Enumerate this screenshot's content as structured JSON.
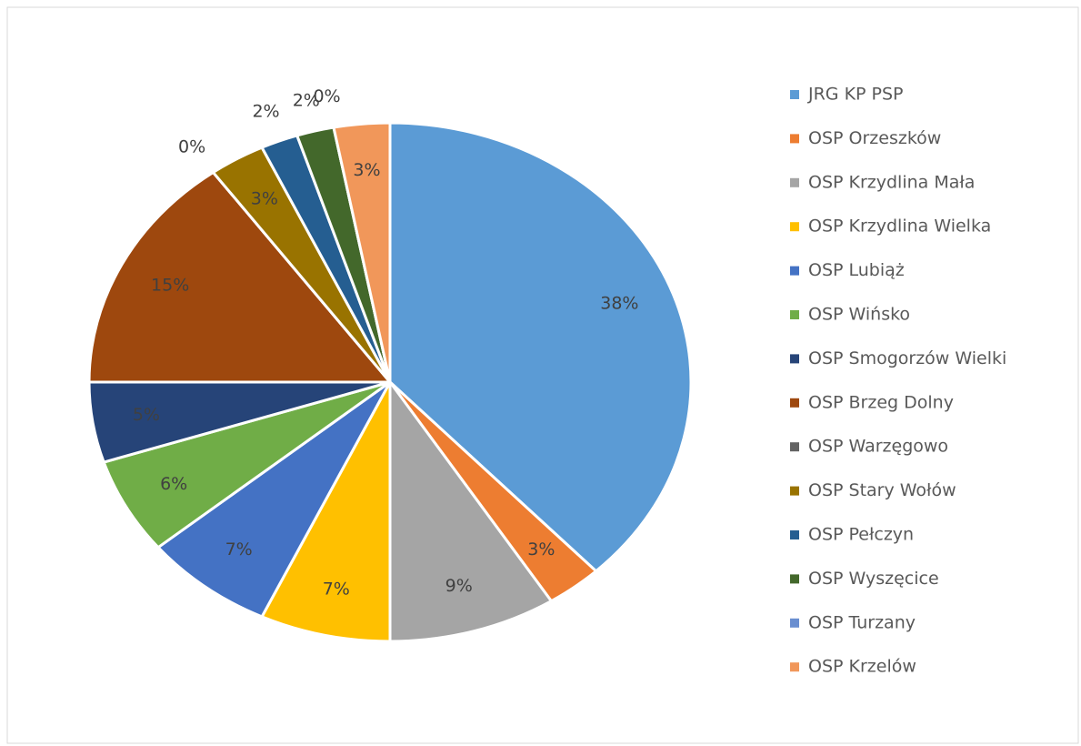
{
  "chart_data": {
    "type": "pie",
    "categories": [
      "JRG KP PSP",
      "OSP Orzeszków",
      "OSP Krzydlina Mała",
      "OSP Krzydlina Wielka",
      "OSP Lubiąż",
      "OSP Wińsko",
      "OSP Smogorzów Wielki",
      "OSP Brzeg Dolny",
      "OSP Warzęgowo",
      "OSP Stary Wołów",
      "OSP Pełczyn",
      "OSP Wyszęcice",
      "OSP Turzany",
      "OSP Krzelów"
    ],
    "values": [
      38,
      3,
      9,
      7,
      7,
      6,
      5,
      15,
      0,
      3,
      2,
      2,
      0,
      3
    ],
    "value_labels": [
      "38%",
      "3%",
      "9%",
      "7%",
      "7%",
      "6%",
      "5%",
      "15%",
      "0%",
      "3%",
      "2%",
      "2%",
      "0%",
      "3%"
    ],
    "colors": [
      "#5b9bd5",
      "#ed7d31",
      "#a5a5a5",
      "#ffc000",
      "#4472c4",
      "#70ad47",
      "#264478",
      "#9e480e",
      "#636363",
      "#997300",
      "#255e91",
      "#43682b",
      "#698ed0",
      "#f1975a"
    ],
    "legend": "right"
  }
}
